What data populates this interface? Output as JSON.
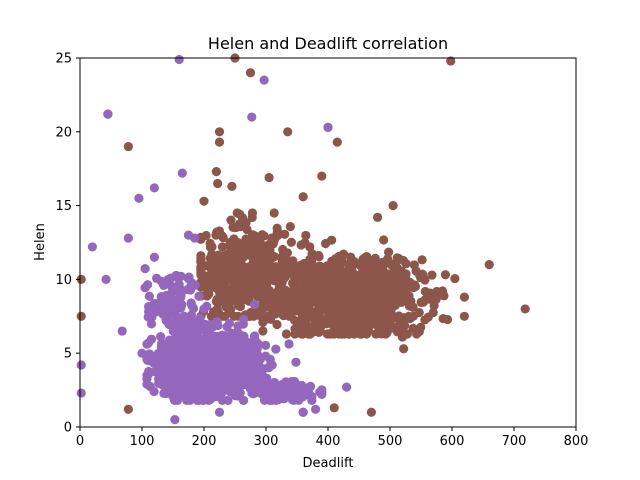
{
  "chart_data": {
    "type": "scatter",
    "title": "Helen and Deadlift correlation",
    "xlabel": "Deadlift",
    "ylabel": "Helen",
    "xlim": [
      0,
      800
    ],
    "ylim": [
      0,
      25
    ],
    "xticks": [
      "0",
      "100",
      "200",
      "300",
      "400",
      "500",
      "600",
      "700",
      "800"
    ],
    "yticks": [
      "0",
      "5",
      "10",
      "15",
      "20",
      "25"
    ],
    "grid": false,
    "legend": "none",
    "series": [
      {
        "color": "#8c564b",
        "outliers": [
          [
            2,
            10
          ],
          [
            2,
            7.5
          ],
          [
            45,
            21.2
          ],
          [
            78,
            19
          ],
          [
            78,
            1.2
          ],
          [
            250,
            25
          ],
          [
            275,
            24
          ],
          [
            225,
            20
          ],
          [
            225,
            19.3
          ],
          [
            335,
            20
          ],
          [
            400,
            20.3
          ],
          [
            415,
            19.3
          ],
          [
            598,
            24.8
          ],
          [
            470,
            1
          ],
          [
            390,
            17
          ],
          [
            305,
            16.9
          ],
          [
            360,
            15.6
          ],
          [
            220,
            17.3
          ],
          [
            222,
            16.5
          ],
          [
            245,
            16.3
          ],
          [
            200,
            15.3
          ],
          [
            480,
            14.2
          ],
          [
            505,
            15
          ],
          [
            660,
            11
          ],
          [
            718,
            8
          ],
          [
            620,
            7.5
          ],
          [
            620,
            8.8
          ],
          [
            520,
            6.1
          ],
          [
            522,
            5.3
          ],
          [
            205,
            5
          ],
          [
            410,
            1.3
          ],
          [
            360,
            1
          ]
        ],
        "clusters": [
          {
            "cx": 430,
            "cy": 8.8,
            "sx": 60,
            "sy": 1.3,
            "n": 950,
            "xmin": 295,
            "xmax": 640,
            "ymin": 6.3,
            "ymax": 13
          },
          {
            "cx": 265,
            "cy": 10.2,
            "sx": 40,
            "sy": 1.6,
            "n": 420,
            "xmin": 195,
            "xmax": 400,
            "ymin": 7.5,
            "ymax": 14.5
          }
        ]
      },
      {
        "color": "#9467bd",
        "outliers": [
          [
            2,
            4.2
          ],
          [
            2,
            2.3
          ],
          [
            20,
            12.2
          ],
          [
            42,
            10
          ],
          [
            45,
            21.2
          ],
          [
            78,
            12.8
          ],
          [
            68,
            6.5
          ],
          [
            95,
            15.5
          ],
          [
            120,
            16.2
          ],
          [
            120,
            11.5
          ],
          [
            165,
            17.2
          ],
          [
            160,
            24.9
          ],
          [
            277,
            21
          ],
          [
            297,
            23.5
          ],
          [
            400,
            20.3
          ],
          [
            175,
            13
          ],
          [
            185,
            12.8
          ],
          [
            200,
            8
          ],
          [
            225,
            1
          ],
          [
            153,
            0.5
          ],
          [
            360,
            1
          ],
          [
            380,
            1.2
          ],
          [
            430,
            2.7
          ],
          [
            100,
            5
          ],
          [
            150,
            9.5
          ]
        ],
        "clusters": [
          {
            "cx": 205,
            "cy": 4.3,
            "sx": 40,
            "sy": 1.1,
            "n": 1100,
            "xmin": 108,
            "xmax": 350,
            "ymin": 1.8,
            "ymax": 8.3
          },
          {
            "cx": 330,
            "cy": 2.4,
            "sx": 28,
            "sy": 0.35,
            "n": 110,
            "xmin": 280,
            "xmax": 390,
            "ymin": 1.8,
            "ymax": 3.3
          },
          {
            "cx": 150,
            "cy": 8.2,
            "sx": 22,
            "sy": 1.1,
            "n": 90,
            "xmin": 105,
            "xmax": 205,
            "ymin": 6.5,
            "ymax": 11.5
          }
        ]
      }
    ]
  }
}
